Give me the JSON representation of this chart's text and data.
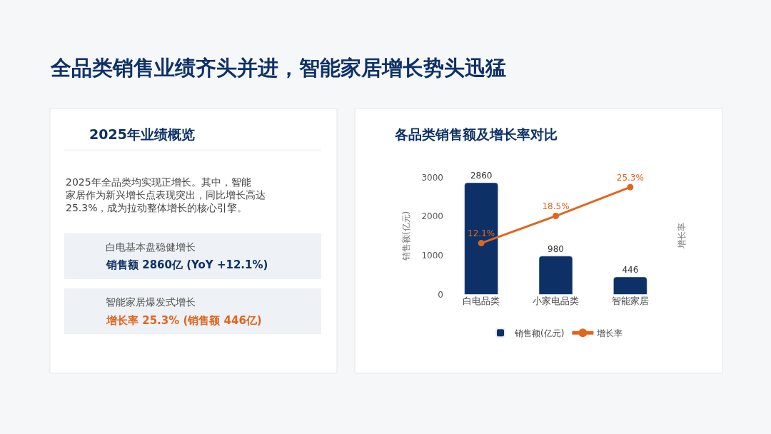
{
  "chart_data": [
    {
      "type": "other",
      "title": "全品类销售业绩齐头并进，智能家居增长势头迅猛"
    },
    {
      "type": "other",
      "title": "2025年业绩概览",
      "annotations": [
        "2025年全品类均实现正增长。其中，智能家居作为新兴增长点表现突出，同比增长高达25.3%，成为拉动整体增长的核心引擎。",
        "白电基本盘稳健增长",
        "销售额 2860亿 (YoY +12.1%)",
        "智能家居爆发式增长",
        "增长率 25.3% (销售额 446亿)"
      ]
    },
    {
      "type": "bar",
      "title": "各品类销售额及增长率对比",
      "categories": [
        "白电品类",
        "小家电品类",
        "智能家居"
      ],
      "ylabel": "销售额(亿元)",
      "y2label": "增长率",
      "ylim": [
        0,
        3000
      ],
      "yticks": [
        0,
        1000,
        2000,
        3000
      ],
      "tick_labels": "xy",
      "legend": "bottom",
      "series": [
        {
          "name": "销售额(亿元)",
          "color": "#0d3166",
          "values": [
            2860,
            980,
            446
          ],
          "value_labels": [
            "2860",
            "980",
            "446"
          ]
        },
        {
          "name": "增长率",
          "type": "line",
          "axis": "y2",
          "color": "#e0661f",
          "marker": "circle",
          "line_style": "solid",
          "values": [
            12.1,
            18.5,
            25.3
          ],
          "value_labels": [
            "12.1%",
            "18.5%",
            "25.3%"
          ]
        }
      ]
    }
  ]
}
